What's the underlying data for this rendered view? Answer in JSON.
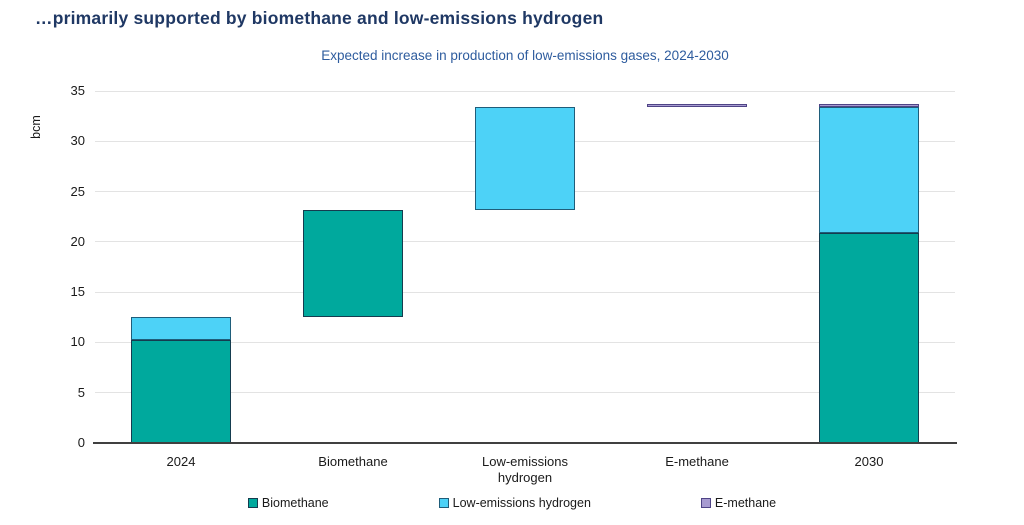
{
  "chart_data": {
    "type": "bar",
    "subtype": "stacked-waterfall",
    "title": "…primarily supported by biomethane and low-emissions hydrogen",
    "subtitle": "Expected increase in production of low-emissions gases, 2024-2030",
    "ylabel": "bcm",
    "ylim": [
      0,
      35
    ],
    "yticks": [
      0,
      5,
      10,
      15,
      20,
      25,
      30,
      35
    ],
    "grid": true,
    "legend_position": "bottom",
    "categories": [
      "2024",
      "Biomethane",
      "Low-emissions\nhydrogen",
      "E-methane",
      "2030"
    ],
    "series_colors": {
      "Biomethane": "#00A99D",
      "Low-emissions hydrogen": "#4DD2F7",
      "E-methane": "#A79BD1"
    },
    "series_borders": {
      "Biomethane": "#153C4F",
      "Low-emissions hydrogen": "#1F5D7A",
      "E-methane": "#4F4486"
    },
    "bars": [
      {
        "category": "2024",
        "segments": [
          {
            "series": "Biomethane",
            "from": 0,
            "to": 10.2
          },
          {
            "series": "Low-emissions hydrogen",
            "from": 10.2,
            "to": 12.5
          }
        ]
      },
      {
        "category": "Biomethane",
        "segments": [
          {
            "series": "Biomethane",
            "from": 12.5,
            "to": 23.2
          }
        ]
      },
      {
        "category": "Low-emissions\nhydrogen",
        "segments": [
          {
            "series": "Low-emissions hydrogen",
            "from": 23.2,
            "to": 33.4
          }
        ]
      },
      {
        "category": "E-methane",
        "segments": [
          {
            "series": "E-methane",
            "from": 33.4,
            "to": 33.7
          }
        ]
      },
      {
        "category": "2030",
        "segments": [
          {
            "series": "Biomethane",
            "from": 0,
            "to": 20.9
          },
          {
            "series": "Low-emissions hydrogen",
            "from": 20.9,
            "to": 33.4
          },
          {
            "series": "E-methane",
            "from": 33.4,
            "to": 33.7
          }
        ]
      }
    ],
    "legend": [
      {
        "label": "Biomethane",
        "color": "#00A99D"
      },
      {
        "label": "Low-emissions hydrogen",
        "color": "#4DD2F7"
      },
      {
        "label": "E-methane",
        "color": "#A79BD1"
      }
    ],
    "colors": {
      "title": "#1F3864",
      "subtitle": "#2E5C9E",
      "gridline": "#e3e3e3",
      "axis_line": "#404040"
    }
  }
}
